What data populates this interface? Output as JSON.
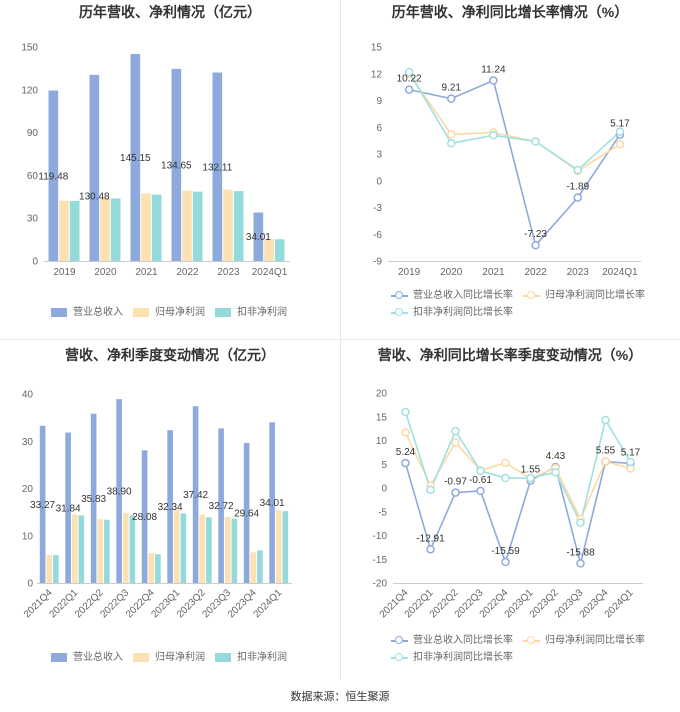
{
  "chart_data": [
    {
      "type": "bar",
      "title": "历年营收、净利情况（亿元）",
      "categories": [
        "2019",
        "2020",
        "2021",
        "2022",
        "2023",
        "2024Q1"
      ],
      "ylim": [
        0,
        150
      ],
      "yticks": [
        0,
        30,
        60,
        90,
        120,
        150
      ],
      "grid": false,
      "legend": "bottom",
      "series": [
        {
          "name": "营业总收入",
          "color": "#8eaadc",
          "show_labels": true,
          "values": [
            119.48,
            130.48,
            145.15,
            134.65,
            132.11,
            34.01
          ]
        },
        {
          "name": "归母净利润",
          "color": "#fde1b2",
          "show_labels": false,
          "values": [
            42.2,
            44.4,
            47.3,
            49.2,
            50.0,
            15.4
          ]
        },
        {
          "name": "扣非净利润",
          "color": "#95dadb",
          "show_labels": false,
          "values": [
            42.1,
            43.8,
            46.5,
            48.6,
            49.0,
            15.2
          ]
        }
      ]
    },
    {
      "type": "line",
      "title": "历年营收、净利同比增长率情况（%）",
      "categories": [
        "2019",
        "2020",
        "2021",
        "2022",
        "2023",
        "2024Q1"
      ],
      "ylim": [
        -9,
        15
      ],
      "yticks": [
        -9,
        -6,
        -3,
        0,
        3,
        6,
        9,
        12,
        15
      ],
      "grid": false,
      "legend": "bottom",
      "series": [
        {
          "name": "营业总收入同比增长率",
          "color": "#8eaadc",
          "show_labels": true,
          "values": [
            10.22,
            9.21,
            11.24,
            -7.23,
            -1.89,
            5.17
          ]
        },
        {
          "name": "归母净利润同比增长率",
          "color": "#fcd9a3",
          "show_labels": false,
          "values": [
            12.0,
            5.2,
            5.4,
            4.4,
            1.1,
            4.1
          ]
        },
        {
          "name": "扣非净利润同比增长率",
          "color": "#a0e0e2",
          "show_labels": false,
          "values": [
            12.2,
            4.2,
            5.1,
            4.4,
            1.2,
            5.5
          ]
        }
      ]
    },
    {
      "type": "bar",
      "title": "营收、净利季度变动情况（亿元）",
      "categories": [
        "2021Q4",
        "2022Q1",
        "2022Q2",
        "2022Q3",
        "2022Q4",
        "2023Q1",
        "2023Q2",
        "2023Q3",
        "2023Q4",
        "2024Q1"
      ],
      "ylim": [
        0,
        40
      ],
      "yticks": [
        0,
        10,
        20,
        30,
        40
      ],
      "grid": false,
      "legend": "bottom",
      "series": [
        {
          "name": "营业总收入",
          "color": "#8eaadc",
          "show_labels": true,
          "values": [
            33.27,
            31.84,
            35.83,
            38.9,
            28.08,
            32.34,
            37.42,
            32.72,
            29.64,
            34.01
          ]
        },
        {
          "name": "归母净利润",
          "color": "#fde1b2",
          "show_labels": false,
          "values": [
            5.9,
            14.5,
            13.5,
            14.8,
            6.3,
            15.5,
            14.5,
            14.0,
            6.5,
            15.4
          ]
        },
        {
          "name": "扣非净利润",
          "color": "#95dadb",
          "show_labels": false,
          "values": [
            5.9,
            14.3,
            13.4,
            14.3,
            6.1,
            14.7,
            13.9,
            13.6,
            6.9,
            15.2
          ]
        }
      ]
    },
    {
      "type": "line",
      "title": "营收、净利同比增长率季度变动情况（%）",
      "categories": [
        "2021Q4",
        "2022Q1",
        "2022Q2",
        "2022Q3",
        "2022Q4",
        "2023Q1",
        "2023Q2",
        "2023Q3",
        "2023Q4",
        "2024Q1"
      ],
      "ylim": [
        -20,
        20
      ],
      "yticks": [
        -20,
        -15,
        -10,
        -5,
        0,
        5,
        10,
        15,
        20
      ],
      "grid": false,
      "legend": "bottom",
      "series": [
        {
          "name": "营业总收入同比增长率",
          "color": "#8eaadc",
          "show_labels": true,
          "values": [
            5.24,
            -12.91,
            -0.97,
            -0.61,
            -15.59,
            1.55,
            4.43,
            -15.88,
            5.55,
            5.17
          ]
        },
        {
          "name": "归母净利润同比增长率",
          "color": "#fcd9a3",
          "show_labels": false,
          "values": [
            11.7,
            0.5,
            9.6,
            3.7,
            5.3,
            2.0,
            4.2,
            -6.5,
            5.6,
            4.1
          ]
        },
        {
          "name": "扣非净利润同比增长率",
          "color": "#a0e0e2",
          "show_labels": false,
          "values": [
            16.0,
            -0.4,
            12.0,
            3.6,
            2.1,
            2.1,
            3.3,
            -7.3,
            14.3,
            5.5
          ]
        }
      ]
    }
  ],
  "footer": {
    "source": "数据来源：恒生聚源"
  }
}
